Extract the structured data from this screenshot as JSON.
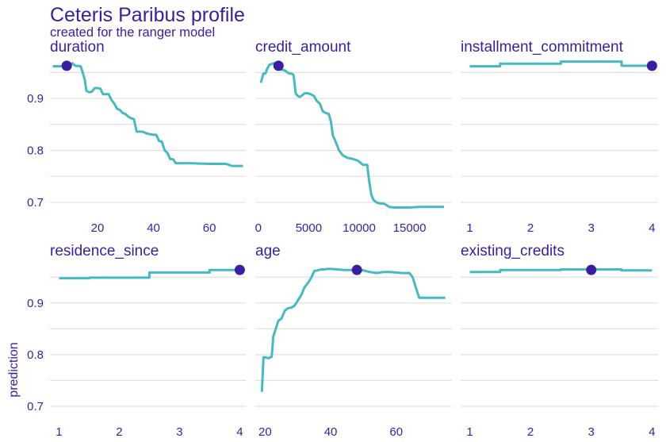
{
  "title": "Ceteris Paribus profile",
  "subtitle": "created for the ranger model",
  "chart_data": {
    "type": "line",
    "ylabel": "prediction",
    "ylim": [
      0.68,
      0.975
    ],
    "yticks": [
      0.7,
      0.8,
      0.9
    ],
    "grid": true,
    "colors": {
      "line": "#46bac2",
      "point": "#371ea3",
      "text": "#371ea3",
      "grid": "#e0e0e0"
    },
    "panels": [
      {
        "name": "duration",
        "xlim": [
          3,
          73
        ],
        "xticks": [
          20,
          40,
          60
        ],
        "observation": {
          "x": 9,
          "y": 0.963
        },
        "x": [
          4,
          6,
          8,
          10,
          11,
          12,
          14,
          15,
          15.5,
          16,
          17,
          18,
          19,
          20,
          21,
          22,
          23,
          24,
          25,
          26,
          27,
          28,
          29,
          30,
          31,
          32,
          33,
          34,
          35,
          36,
          37,
          38,
          39,
          40,
          41,
          42,
          43,
          44,
          45,
          46,
          47,
          48,
          50,
          54,
          60,
          64,
          66,
          68,
          70,
          72
        ],
        "y": [
          0.962,
          0.962,
          0.962,
          0.962,
          0.968,
          0.963,
          0.962,
          0.945,
          0.935,
          0.915,
          0.912,
          0.913,
          0.92,
          0.92,
          0.919,
          0.908,
          0.908,
          0.908,
          0.897,
          0.89,
          0.88,
          0.878,
          0.872,
          0.87,
          0.865,
          0.862,
          0.86,
          0.836,
          0.836,
          0.836,
          0.834,
          0.832,
          0.831,
          0.83,
          0.83,
          0.818,
          0.817,
          0.8,
          0.795,
          0.783,
          0.783,
          0.775,
          0.775,
          0.775,
          0.774,
          0.774,
          0.774,
          0.77,
          0.77,
          0.77
        ]
      },
      {
        "name": "credit_amount",
        "xlim": [
          -300,
          19200
        ],
        "xticks": [
          0,
          5000,
          10000,
          15000
        ],
        "observation": {
          "x": 2000,
          "y": 0.963
        },
        "x": [
          250,
          500,
          700,
          900,
          1100,
          1300,
          1500,
          1700,
          1900,
          2100,
          2300,
          2500,
          2700,
          2900,
          3100,
          3300,
          3500,
          3700,
          3900,
          4100,
          4300,
          4600,
          4900,
          5200,
          5500,
          5800,
          6100,
          6400,
          6700,
          7000,
          7200,
          7400,
          7600,
          7800,
          8000,
          8200,
          8400,
          8600,
          8800,
          9000,
          9300,
          9600,
          9900,
          10200,
          10400,
          10600,
          10800,
          11000,
          11200,
          11400,
          11700,
          12000,
          12500,
          13000,
          13500,
          14000,
          15000,
          16000,
          17000,
          18420
        ],
        "y": [
          0.93,
          0.948,
          0.948,
          0.958,
          0.965,
          0.966,
          0.968,
          0.965,
          0.962,
          0.96,
          0.955,
          0.955,
          0.953,
          0.95,
          0.948,
          0.948,
          0.945,
          0.91,
          0.905,
          0.903,
          0.905,
          0.91,
          0.91,
          0.908,
          0.905,
          0.895,
          0.89,
          0.875,
          0.872,
          0.87,
          0.855,
          0.828,
          0.82,
          0.81,
          0.8,
          0.795,
          0.79,
          0.788,
          0.786,
          0.785,
          0.784,
          0.782,
          0.78,
          0.775,
          0.772,
          0.772,
          0.772,
          0.74,
          0.715,
          0.705,
          0.7,
          0.698,
          0.697,
          0.691,
          0.69,
          0.69,
          0.69,
          0.691,
          0.691,
          0.691
        ]
      },
      {
        "name": "installment_commitment",
        "xlim": [
          0.85,
          4.1
        ],
        "xticks": [
          1,
          2,
          3,
          4
        ],
        "observation": {
          "x": 4,
          "y": 0.963
        },
        "x": [
          1,
          1.5,
          1.5,
          2.5,
          2.5,
          3.5,
          3.5,
          4
        ],
        "y": [
          0.962,
          0.962,
          0.967,
          0.967,
          0.971,
          0.971,
          0.963,
          0.963
        ]
      },
      {
        "name": "residence_since",
        "xlim": [
          0.85,
          4.1
        ],
        "xticks": [
          1,
          2,
          3,
          4
        ],
        "observation": {
          "x": 4,
          "y": 0.964
        },
        "x": [
          1,
          1.5,
          1.5,
          2.5,
          2.5,
          3.5,
          3.5,
          4
        ],
        "y": [
          0.948,
          0.948,
          0.949,
          0.949,
          0.959,
          0.959,
          0.964,
          0.964
        ]
      },
      {
        "name": "age",
        "xlim": [
          17,
          77
        ],
        "xticks": [
          20,
          40,
          60
        ],
        "observation": {
          "x": 48,
          "y": 0.964
        },
        "x": [
          19,
          19.5,
          20,
          21,
          22,
          22.5,
          23,
          24,
          25,
          26,
          27,
          28,
          29,
          30,
          31,
          32,
          33,
          34,
          35,
          36,
          37,
          38,
          39,
          40,
          42,
          44,
          46,
          48,
          50,
          52,
          54,
          56,
          58,
          60,
          62,
          64,
          65,
          66,
          67,
          68,
          70,
          72,
          75
        ],
        "y": [
          0.728,
          0.795,
          0.795,
          0.793,
          0.796,
          0.835,
          0.845,
          0.865,
          0.87,
          0.885,
          0.89,
          0.891,
          0.895,
          0.905,
          0.915,
          0.93,
          0.938,
          0.948,
          0.962,
          0.963,
          0.965,
          0.965,
          0.966,
          0.966,
          0.965,
          0.964,
          0.964,
          0.964,
          0.963,
          0.96,
          0.958,
          0.96,
          0.96,
          0.959,
          0.958,
          0.958,
          0.95,
          0.93,
          0.91,
          0.91,
          0.91,
          0.91,
          0.91
        ]
      },
      {
        "name": "existing_credits",
        "xlim": [
          0.85,
          4.1
        ],
        "xticks": [
          1,
          2,
          3,
          4
        ],
        "observation": {
          "x": 3,
          "y": 0.964
        },
        "x": [
          1,
          1.5,
          1.5,
          2.5,
          2.5,
          3.5,
          3.5,
          4
        ],
        "y": [
          0.96,
          0.96,
          0.964,
          0.964,
          0.965,
          0.965,
          0.963,
          0.963
        ]
      }
    ]
  }
}
